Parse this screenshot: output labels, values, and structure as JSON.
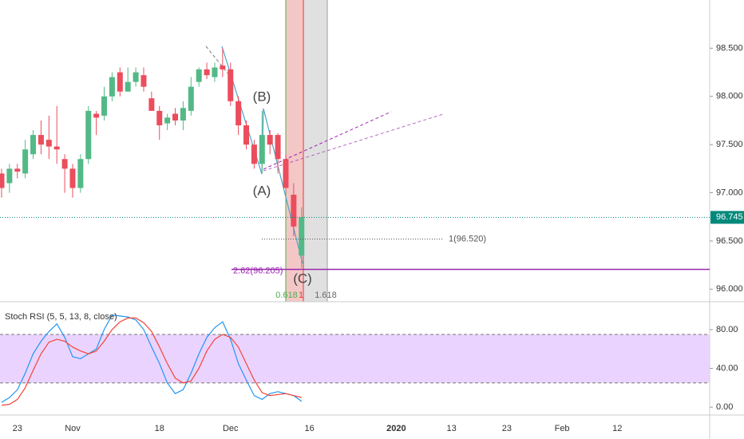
{
  "chart_data": [
    {
      "type": "candlestick",
      "x": [
        -29,
        -28,
        -27,
        -26,
        -25,
        -24,
        -23,
        -22,
        -21,
        -20,
        -19,
        -18,
        -17,
        -16,
        -15,
        -14,
        -13,
        -12,
        -11,
        -10,
        -9,
        -8,
        -7,
        -6,
        -5,
        -4,
        -3,
        -2,
        -1,
        0,
        1,
        2,
        3,
        4,
        5,
        6,
        7,
        8,
        9
      ],
      "open": [
        97.2,
        97.1,
        97.25,
        97.2,
        97.4,
        97.6,
        97.55,
        97.48,
        97.35,
        97.25,
        97.05,
        97.35,
        97.82,
        97.8,
        98.0,
        98.25,
        98.05,
        98.15,
        98.22,
        97.98,
        97.85,
        97.72,
        97.82,
        97.75,
        97.85,
        98.15,
        98.28,
        98.2,
        98.32,
        98.28,
        97.95,
        97.7,
        97.5,
        97.3,
        97.6,
        97.6,
        97.35,
        96.98,
        96.35
      ],
      "high": [
        97.25,
        97.3,
        97.3,
        97.55,
        97.65,
        97.75,
        97.8,
        97.9,
        97.4,
        97.3,
        97.4,
        97.9,
        97.85,
        98.1,
        98.25,
        98.3,
        98.3,
        98.3,
        98.3,
        98.05,
        97.9,
        97.82,
        97.88,
        97.95,
        98.2,
        98.3,
        98.35,
        98.35,
        98.5,
        98.35,
        98.0,
        97.75,
        97.55,
        97.85,
        97.65,
        97.62,
        97.4,
        97.1,
        96.85
      ],
      "low": [
        96.95,
        97.0,
        97.15,
        97.15,
        97.35,
        97.4,
        97.35,
        97.3,
        97.0,
        96.95,
        97.0,
        97.3,
        97.6,
        97.75,
        97.95,
        98.0,
        98.05,
        98.1,
        98.05,
        97.85,
        97.55,
        97.65,
        97.7,
        97.65,
        97.8,
        98.1,
        98.18,
        98.15,
        98.2,
        97.9,
        97.6,
        97.45,
        97.25,
        97.2,
        97.4,
        97.2,
        97.0,
        96.55,
        96.22
      ],
      "close": [
        97.05,
        97.25,
        97.22,
        97.45,
        97.6,
        97.5,
        97.48,
        97.45,
        97.25,
        97.05,
        97.35,
        97.85,
        97.78,
        98.0,
        98.2,
        98.05,
        98.15,
        98.25,
        98.1,
        97.85,
        97.7,
        97.78,
        97.75,
        97.88,
        98.1,
        98.28,
        98.22,
        98.3,
        98.28,
        97.95,
        97.7,
        97.5,
        97.3,
        97.6,
        97.5,
        97.35,
        97.05,
        96.65,
        96.745
      ],
      "up_color": "#53b987",
      "down_color": "#eb4d5c",
      "xlim": [
        -29.2,
        60.7
      ],
      "xticks": [
        {
          "value": -27,
          "label": "23"
        },
        {
          "value": -20,
          "label": "Nov"
        },
        {
          "value": -9,
          "label": "18"
        },
        {
          "value": 0,
          "label": "Dec"
        },
        {
          "value": 10,
          "label": "16"
        },
        {
          "value": 21,
          "label": "2020"
        },
        {
          "value": 28,
          "label": "13"
        },
        {
          "value": 35,
          "label": "23"
        },
        {
          "value": 42,
          "label": "Feb"
        },
        {
          "value": 49,
          "label": "12"
        }
      ],
      "ylim": [
        95.87,
        99.0
      ],
      "yticks": [
        {
          "value": 96,
          "label": "96.000"
        },
        {
          "value": 96.5,
          "label": "96.500"
        },
        {
          "value": 97,
          "label": "97.000"
        },
        {
          "value": 97.5,
          "label": "97.500"
        },
        {
          "value": 98,
          "label": "98.000"
        },
        {
          "value": 98.5,
          "label": "98.500"
        }
      ],
      "price_line": {
        "value": 96.745,
        "label": "96.745",
        "color": "#00897b"
      },
      "levels": [
        {
          "value": 96.52,
          "label": "1(96.520)",
          "color": "#555"
        },
        {
          "value": 96.205,
          "label": "2.62(96.205)",
          "color": "#9c27b0"
        }
      ],
      "annotations": [
        "(B)",
        "(A)",
        "(C)",
        "0.618",
        "1",
        "1.618"
      ]
    },
    {
      "type": "line",
      "title": "Stoch RSI (5, 5, 13, 8, close)",
      "series": [
        {
          "color": "#2196f3",
          "values": [
            5,
            10,
            18,
            35,
            55,
            68,
            78,
            86,
            72,
            52,
            50,
            55,
            60,
            80,
            95,
            94,
            93,
            90,
            80,
            62,
            45,
            25,
            14,
            18,
            35,
            55,
            72,
            82,
            88,
            70,
            45,
            28,
            12,
            8,
            14,
            16,
            14,
            12,
            6
          ]
        },
        {
          "color": "#f44336",
          "values": [
            2,
            3,
            8,
            20,
            38,
            55,
            67,
            70,
            68,
            62,
            58,
            55,
            58,
            68,
            80,
            88,
            92,
            92,
            87,
            78,
            62,
            45,
            30,
            25,
            27,
            40,
            58,
            70,
            75,
            72,
            62,
            45,
            28,
            15,
            12,
            13,
            14,
            12,
            10
          ]
        }
      ],
      "band": [
        25,
        75
      ],
      "ylim": [
        -4,
        103
      ],
      "yticks": [
        {
          "value": 0,
          "label": "0.00"
        },
        {
          "value": 40,
          "label": "40.00"
        },
        {
          "value": 80,
          "label": "80.00"
        }
      ]
    }
  ]
}
